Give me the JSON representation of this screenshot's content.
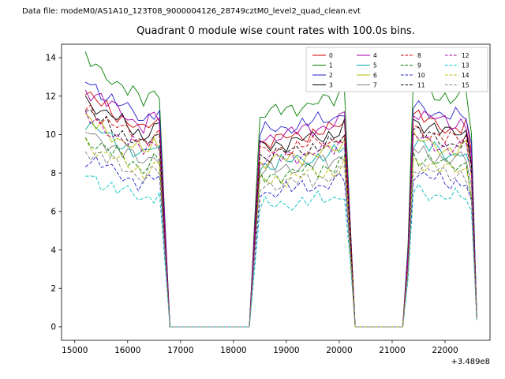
{
  "header": {
    "data_file_label": "Data file: modeM0/AS1A10_123T08_9000004126_28749cztM0_level2_quad_clean.evt"
  },
  "chart_data": {
    "type": "line",
    "title": "Quadrant 0 module wise count rates with 100.0s bins.",
    "xlabel": "",
    "ylabel": "",
    "x_axis_offset_label": "+3.489e8",
    "xlim": [
      14750,
      22850
    ],
    "ylim": [
      -0.7,
      14.7
    ],
    "xticks": [
      15000,
      16000,
      17000,
      18000,
      19000,
      20000,
      21000,
      22000
    ],
    "yticks": [
      0,
      2,
      4,
      6,
      8,
      10,
      12,
      14
    ],
    "grid": false,
    "legend": {
      "location": "upper right",
      "columns": 4
    },
    "x_start": 15200,
    "x_end": 22600,
    "x_step": 100,
    "envelope_segments": [
      [
        15200,
        16300,
        1.14,
        0.96
      ],
      [
        16300,
        16550,
        0.96,
        1.02
      ],
      [
        16550,
        16650,
        1.02,
        0.98
      ],
      [
        16650,
        16750,
        0.98,
        0.0
      ],
      [
        16750,
        18350,
        0.0,
        0.0
      ],
      [
        18350,
        18450,
        0.0,
        0.9
      ],
      [
        18450,
        19900,
        0.9,
        0.97
      ],
      [
        19900,
        20150,
        0.97,
        1.02
      ],
      [
        20150,
        20250,
        1.02,
        0.0
      ],
      [
        20250,
        21270,
        0.0,
        0.0
      ],
      [
        21270,
        21360,
        0.0,
        1.04
      ],
      [
        21360,
        22100,
        1.04,
        0.97
      ],
      [
        22100,
        22480,
        0.97,
        0.99
      ],
      [
        22480,
        22600,
        0.99,
        0.05
      ]
    ],
    "noise": {
      "a1": 0.27,
      "f1": 1.93,
      "p1": 2.31,
      "a2": 0.17,
      "f2": 0.71,
      "p2": 1.13,
      "a3": 0.1,
      "f3": 3.7,
      "p3": 0.57
    },
    "series": [
      {
        "name": "0",
        "color": "#cc0000",
        "dashed": false,
        "level": 10.6
      },
      {
        "name": "1",
        "color": "#007f00",
        "dashed": false,
        "level": 12.2
      },
      {
        "name": "2",
        "color": "#2222cc",
        "dashed": false,
        "level": 11.2
      },
      {
        "name": "3",
        "color": "#000000",
        "dashed": false,
        "level": 10.35
      },
      {
        "name": "4",
        "color": "#aa00aa",
        "dashed": false,
        "level": 10.85
      },
      {
        "name": "5",
        "color": "#00a8a8",
        "dashed": false,
        "level": 9.25
      },
      {
        "name": "6",
        "color": "#b8b800",
        "dashed": false,
        "level": 9.45
      },
      {
        "name": "7",
        "color": "#808080",
        "dashed": false,
        "level": 8.9
      },
      {
        "name": "8",
        "color": "#cc0000",
        "dashed": true,
        "level": 10.0
      },
      {
        "name": "9",
        "color": "#007f00",
        "dashed": true,
        "level": 8.6
      },
      {
        "name": "10",
        "color": "#2222cc",
        "dashed": true,
        "level": 7.7
      },
      {
        "name": "11",
        "color": "#000000",
        "dashed": true,
        "level": 9.8
      },
      {
        "name": "12",
        "color": "#aa00aa",
        "dashed": true,
        "level": 9.55
      },
      {
        "name": "13",
        "color": "#00c0c0",
        "dashed": true,
        "level": 6.9
      },
      {
        "name": "14",
        "color": "#b8b800",
        "dashed": true,
        "level": 8.35
      },
      {
        "name": "15",
        "color": "#808080",
        "dashed": true,
        "level": 8.1
      }
    ]
  }
}
